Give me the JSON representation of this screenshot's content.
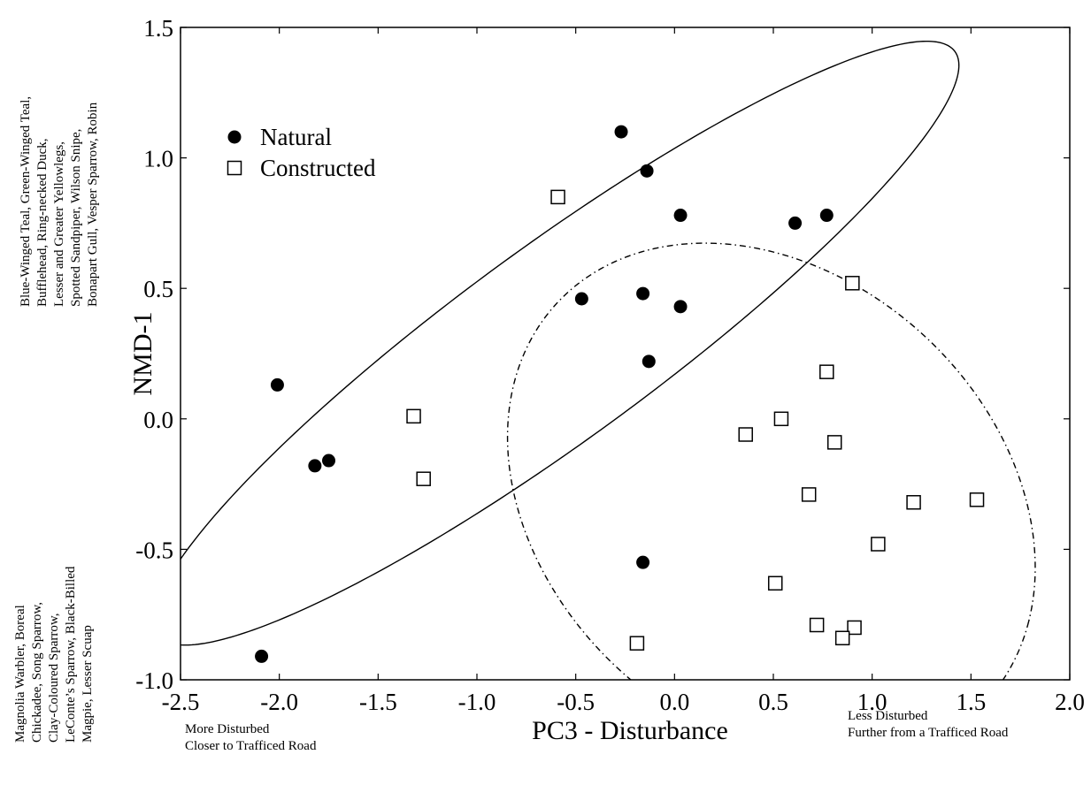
{
  "chart_data": {
    "type": "scatter",
    "title": "",
    "xlabel": "PC3 - Disturbance",
    "ylabel": "NMD-1",
    "xlim": [
      -2.5,
      2.0
    ],
    "ylim": [
      -1.0,
      1.5
    ],
    "x_ticks": [
      "-2.5",
      "-2.0",
      "-1.5",
      "-1.0",
      "-0.5",
      "0.0",
      "0.5",
      "1.0",
      "1.5",
      "2.0"
    ],
    "y_ticks": [
      "-1.0",
      "-0.5",
      "0.0",
      "0.5",
      "1.0",
      "1.5"
    ],
    "grid": false,
    "legend_position": "top-left",
    "series": [
      {
        "name": "Natural",
        "marker": "filled-circle",
        "color": "#000000",
        "points": [
          [
            -0.27,
            1.1
          ],
          [
            -0.14,
            0.95
          ],
          [
            0.03,
            0.78
          ],
          [
            0.61,
            0.75
          ],
          [
            0.77,
            0.78
          ],
          [
            -0.47,
            0.46
          ],
          [
            -0.16,
            0.48
          ],
          [
            0.03,
            0.43
          ],
          [
            -0.13,
            0.22
          ],
          [
            -2.01,
            0.13
          ],
          [
            -1.82,
            -0.18
          ],
          [
            -1.75,
            -0.16
          ],
          [
            -0.16,
            -0.55
          ],
          [
            -2.09,
            -0.91
          ]
        ]
      },
      {
        "name": "Constructed",
        "marker": "open-square",
        "color": "#000000",
        "points": [
          [
            -0.59,
            0.85
          ],
          [
            0.9,
            0.52
          ],
          [
            0.77,
            0.18
          ],
          [
            0.54,
            0.0
          ],
          [
            0.36,
            -0.06
          ],
          [
            0.81,
            -0.09
          ],
          [
            -1.32,
            0.01
          ],
          [
            -1.27,
            -0.23
          ],
          [
            0.68,
            -0.29
          ],
          [
            1.21,
            -0.32
          ],
          [
            1.53,
            -0.31
          ],
          [
            1.03,
            -0.48
          ],
          [
            0.51,
            -0.63
          ],
          [
            0.72,
            -0.79
          ],
          [
            0.91,
            -0.8
          ],
          [
            0.85,
            -0.84
          ],
          [
            -0.19,
            -0.86
          ]
        ]
      }
    ],
    "ellipses": [
      {
        "series": "Natural",
        "style": "solid",
        "cx": -0.6,
        "cy": 0.29,
        "semi_major": 2.31,
        "semi_minor": 0.4,
        "angle_deg": 28.5
      },
      {
        "series": "Constructed",
        "style": "dash-dot",
        "cx": 0.49,
        "cy": -0.32,
        "semi_major": 1.38,
        "semi_minor": 0.93,
        "angle_deg": -20
      }
    ],
    "annotations": {
      "y_top": [
        "Blue-Winged Teal, Green-Winged Teal,",
        "Bufflehead, Ring-necked Duck,",
        "Lesser and Greater Yellowlegs,",
        "Spotted Sandpiper, Wilson Snipe,",
        "Bonapart Gull, Vesper Sparrow, Robin"
      ],
      "y_bottom": [
        "Magnolia Warbler, Boreal",
        "Chickadee, Song Sparrow,",
        "Clay-Coloured Sparrow,",
        "LeConte’s Sparrow, Black-Billed",
        "Magpie, Lesser Scuap"
      ],
      "x_left": [
        "More Disturbed",
        "Closer to Trafficed Road"
      ],
      "x_right": [
        "Less Disturbed",
        "Further from a Trafficed Road"
      ]
    }
  }
}
